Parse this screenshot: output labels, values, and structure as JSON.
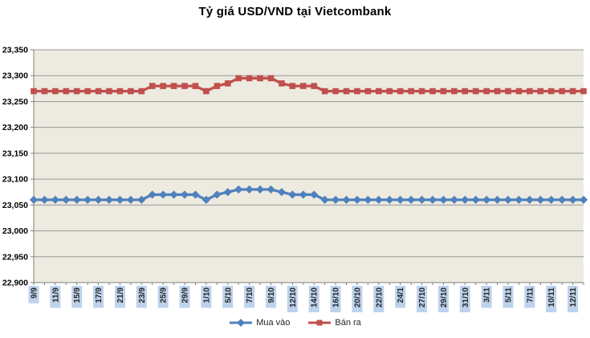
{
  "title": "Tỷ giá USD/VND tại Vietcombank",
  "chart_data": {
    "type": "line",
    "title": "Tỷ giá USD/VND tại Vietcombank",
    "xlabel": "",
    "ylabel": "",
    "x_labels": [
      "9/9",
      "11/9",
      "15/9",
      "17/9",
      "21/9",
      "23/9",
      "25/9",
      "29/9",
      "1/10",
      "5/10",
      "7/10",
      "9/10",
      "12/10",
      "14/10",
      "16/10",
      "20/10",
      "22/10",
      "24/1",
      "27/10",
      "29/10",
      "31/10",
      "3/11",
      "5/11",
      "7/11",
      "10/11",
      "12/11"
    ],
    "label_every": 2,
    "n_points": 52,
    "ylim": [
      22900,
      23350
    ],
    "ytick_step": 50,
    "ytick_labels": [
      "22,900",
      "22,950",
      "23,000",
      "23,050",
      "23,100",
      "23,150",
      "23,200",
      "23,250",
      "23,300",
      "23,350"
    ],
    "grid": true,
    "legend_position": "bottom",
    "series": [
      {
        "name": "Mua vào",
        "color": "#4F81BD",
        "marker": "diamond",
        "values": [
          23060,
          23060,
          23060,
          23060,
          23060,
          23060,
          23060,
          23060,
          23060,
          23060,
          23060,
          23070,
          23070,
          23070,
          23070,
          23070,
          23060,
          23070,
          23075,
          23080,
          23080,
          23080,
          23080,
          23075,
          23070,
          23070,
          23070,
          23060,
          23060,
          23060,
          23060,
          23060,
          23060,
          23060,
          23060,
          23060,
          23060,
          23060,
          23060,
          23060,
          23060,
          23060,
          23060,
          23060,
          23060,
          23060,
          23060,
          23060,
          23060,
          23060,
          23060,
          23060
        ]
      },
      {
        "name": "Bán ra",
        "color": "#C0504D",
        "marker": "square",
        "values": [
          23270,
          23270,
          23270,
          23270,
          23270,
          23270,
          23270,
          23270,
          23270,
          23270,
          23270,
          23280,
          23280,
          23280,
          23280,
          23280,
          23270,
          23280,
          23285,
          23295,
          23295,
          23295,
          23295,
          23285,
          23280,
          23280,
          23280,
          23270,
          23270,
          23270,
          23270,
          23270,
          23270,
          23270,
          23270,
          23270,
          23270,
          23270,
          23270,
          23270,
          23270,
          23270,
          23270,
          23270,
          23270,
          23270,
          23270,
          23270,
          23270,
          23270,
          23270,
          23270
        ]
      }
    ],
    "colors": {
      "plot_bg": "#EDEAE0",
      "gridline": "#999999",
      "axis": "#808080",
      "xlabel_bg": "#BDD2EC",
      "xlabel_text": "#262626"
    }
  }
}
